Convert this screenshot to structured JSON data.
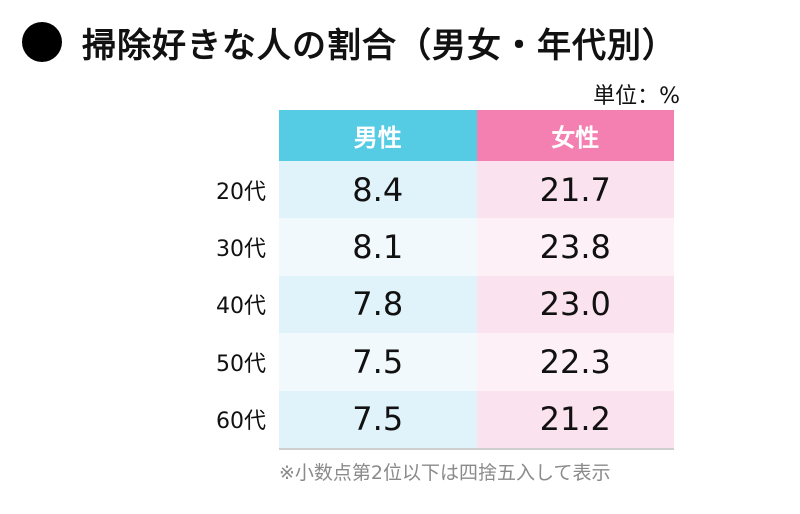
{
  "title": "掃除好きな人の割合（男女・年代別）",
  "unit": "単位：%",
  "footnote": "※小数点第2位以下は四捨五入して表示",
  "chart_data": {
    "type": "table",
    "title": "掃除好きな人の割合（男女・年代別）",
    "columns": [
      "男性",
      "女性"
    ],
    "rows": [
      {
        "label": "20代",
        "values": [
          "8.4",
          "21.7"
        ]
      },
      {
        "label": "30代",
        "values": [
          "8.1",
          "23.8"
        ]
      },
      {
        "label": "40代",
        "values": [
          "7.8",
          "23.0"
        ]
      },
      {
        "label": "50代",
        "values": [
          "7.5",
          "22.3"
        ]
      },
      {
        "label": "60代",
        "values": [
          "7.5",
          "21.2"
        ]
      }
    ],
    "colors": {
      "male_header": "#56cbe4",
      "female_header": "#f47fb1",
      "male_cell": "#e1f3fa",
      "female_cell": "#fbe2ef"
    }
  }
}
